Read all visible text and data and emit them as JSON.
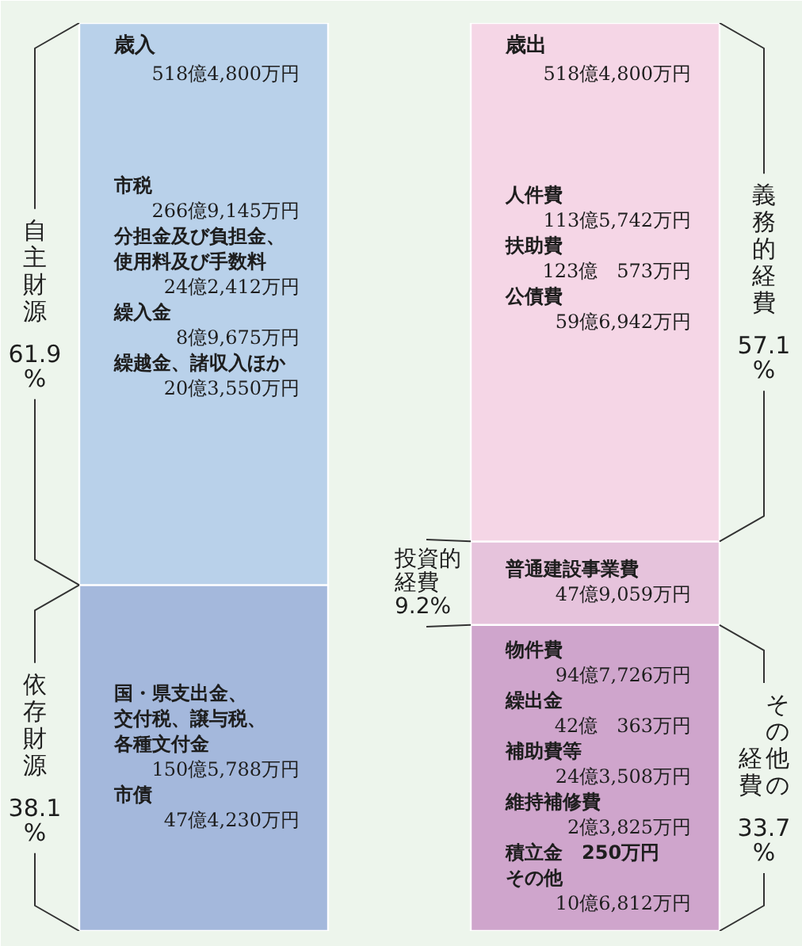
{
  "chart_data": {
    "type": "bar",
    "stacked": true,
    "categories": [
      "歳入",
      "歳出"
    ],
    "totals": [
      "518億4,800万円",
      "518億4,800万円"
    ],
    "series": [
      {
        "name": "依存財源",
        "color": "#a4b8dc",
        "values": [
          38.1,
          null
        ],
        "value_labels": [
          "38.1\n%",
          null
        ]
      },
      {
        "name": "自主財源",
        "color": "#b9d1ea",
        "values": [
          61.9,
          null
        ],
        "value_labels": [
          "61.9\n%",
          null
        ]
      },
      {
        "name": "その他の経費",
        "color": "#cfa5cc",
        "values": [
          null,
          33.7
        ],
        "value_labels": [
          null,
          "33.7\n%"
        ]
      },
      {
        "name": "投資的経費",
        "color": "#e6c3dc",
        "values": [
          null,
          9.2
        ],
        "value_labels": [
          null,
          "9.2%"
        ]
      },
      {
        "name": "義務的経費",
        "color": "#f5d6e6",
        "values": [
          null,
          57.1
        ],
        "value_labels": [
          null,
          "57.1\n%"
        ]
      }
    ],
    "annotations": [
      "市税\n266億9,145万円",
      "分担金及び負担金、使用料及び手数料\n24億2,412万円",
      "繰入金\n8億9,675万円",
      "繰越金、諸収入ほか\n20億3,550万円",
      "国・県支出金、交付税、譲与税、各種文付金\n150億5,788万円",
      "市債\n47億4,230万円",
      "人件費\n113億5,742万円",
      "扶助費\n123億　573万円",
      "公債費\n59億6,942万円",
      "普通建設事業費\n47億9,059万円",
      "物件費\n94億7,726万円",
      "繰出金\n42億　363万円",
      "補助費等\n24億3,508万円",
      "維持補修費\n2億3,825万円",
      "積立金　250万円",
      "その他\n10億6,812万円"
    ]
  }
}
